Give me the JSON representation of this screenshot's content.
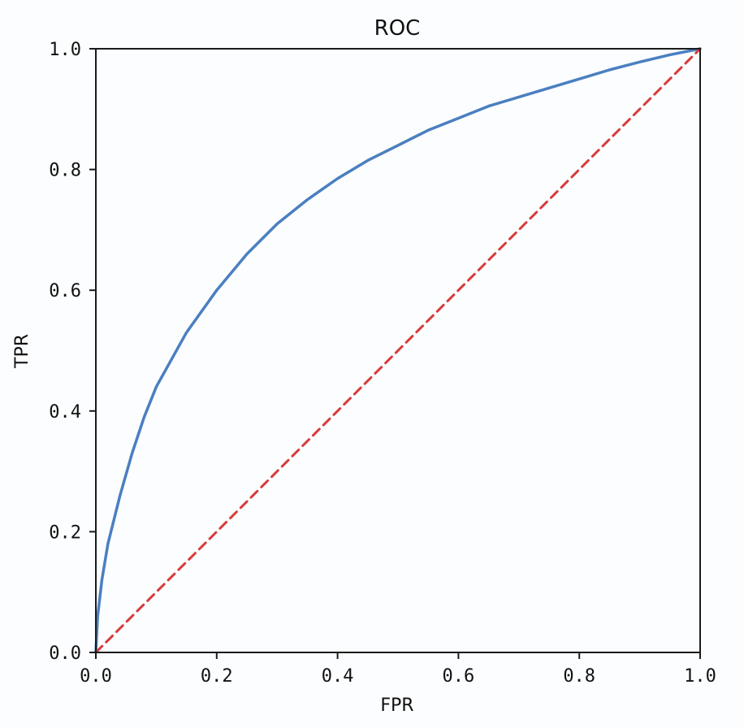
{
  "chart_data": {
    "type": "line",
    "title": "ROC",
    "xlabel": "FPR",
    "ylabel": "TPR",
    "xlim": [
      0.0,
      1.0
    ],
    "ylim": [
      0.0,
      1.0
    ],
    "grid": false,
    "xticks": [
      "0.0",
      "0.2",
      "0.4",
      "0.6",
      "0.8",
      "1.0"
    ],
    "yticks": [
      "0.0",
      "0.2",
      "0.4",
      "0.6",
      "0.8",
      "1.0"
    ],
    "series": [
      {
        "style": "solid",
        "color": "#4a7fc1",
        "x": [
          0.0,
          0.003,
          0.01,
          0.02,
          0.04,
          0.06,
          0.08,
          0.1,
          0.15,
          0.2,
          0.25,
          0.3,
          0.35,
          0.4,
          0.45,
          0.5,
          0.55,
          0.6,
          0.65,
          0.7,
          0.75,
          0.8,
          0.85,
          0.9,
          0.95,
          1.0
        ],
        "y": [
          0.0,
          0.06,
          0.12,
          0.18,
          0.26,
          0.33,
          0.39,
          0.44,
          0.53,
          0.6,
          0.66,
          0.71,
          0.75,
          0.785,
          0.815,
          0.84,
          0.865,
          0.885,
          0.905,
          0.92,
          0.935,
          0.95,
          0.965,
          0.978,
          0.99,
          1.0
        ]
      },
      {
        "style": "dashed",
        "color": "#d93a3a",
        "x": [
          0.0,
          1.0
        ],
        "y": [
          0.0,
          1.0
        ]
      }
    ]
  }
}
